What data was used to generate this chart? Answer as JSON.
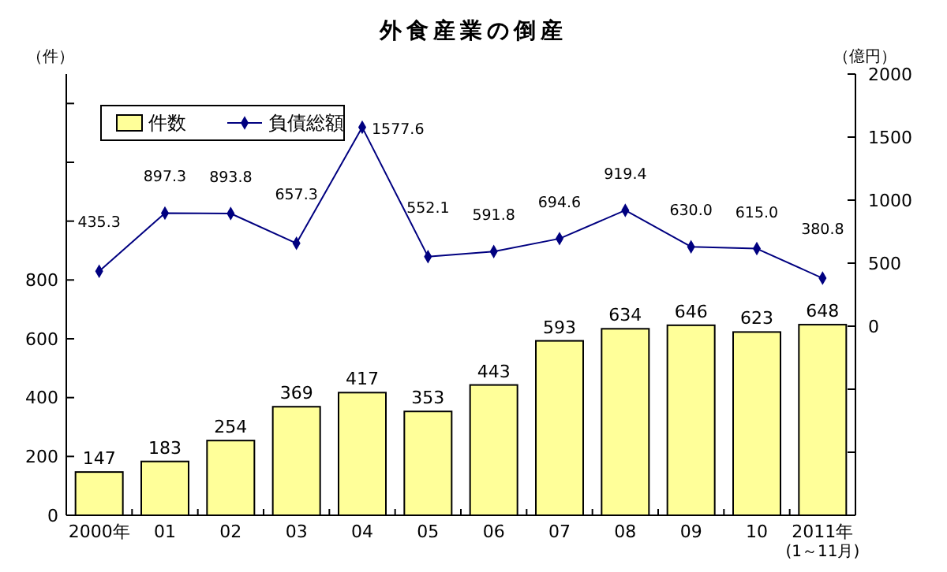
{
  "chart_data": {
    "type": "bar",
    "title": "外食産業の倒産",
    "ylabel": "（件）",
    "y2label": "（億円）",
    "categories": [
      "2000年",
      "01",
      "02",
      "03",
      "04",
      "05",
      "06",
      "07",
      "08",
      "09",
      "10",
      "2011年\n(1～11月)"
    ],
    "series": [
      {
        "name": "件数",
        "color": "#ffff99",
        "values": [
          147,
          183,
          254,
          369,
          417,
          353,
          443,
          593,
          634,
          646,
          623,
          648
        ],
        "data_labels": true
      },
      {
        "name": "負債総額",
        "type": "line",
        "axis": "y2",
        "color": "#000080",
        "marker": "diamond",
        "values": [
          435.3,
          897.3,
          893.8,
          657.3,
          1577.6,
          552.1,
          591.8,
          694.6,
          919.4,
          630.0,
          615.0,
          380.8
        ],
        "value_labels": [
          "435.3",
          "897.3",
          "893.8",
          "657.3",
          "1577.6",
          "552.1",
          "591.8",
          "694.6",
          "919.4",
          "630.0",
          "615.0",
          "380.8"
        ]
      }
    ],
    "ylim": [
      0,
      1500
    ],
    "yticks": [
      0,
      200,
      400,
      600,
      800,
      {
        "value": 1000,
        "label": null
      },
      {
        "value": 1200,
        "label": null
      },
      {
        "value": 1400,
        "label": null
      }
    ],
    "y2lim": [
      -1500,
      2000
    ],
    "y2ticks": [
      {
        "value": -1000,
        "label": null
      },
      {
        "value": -500,
        "label": null
      },
      0,
      500,
      1000,
      1500,
      2000
    ],
    "legend": "top left",
    "grid": false
  }
}
